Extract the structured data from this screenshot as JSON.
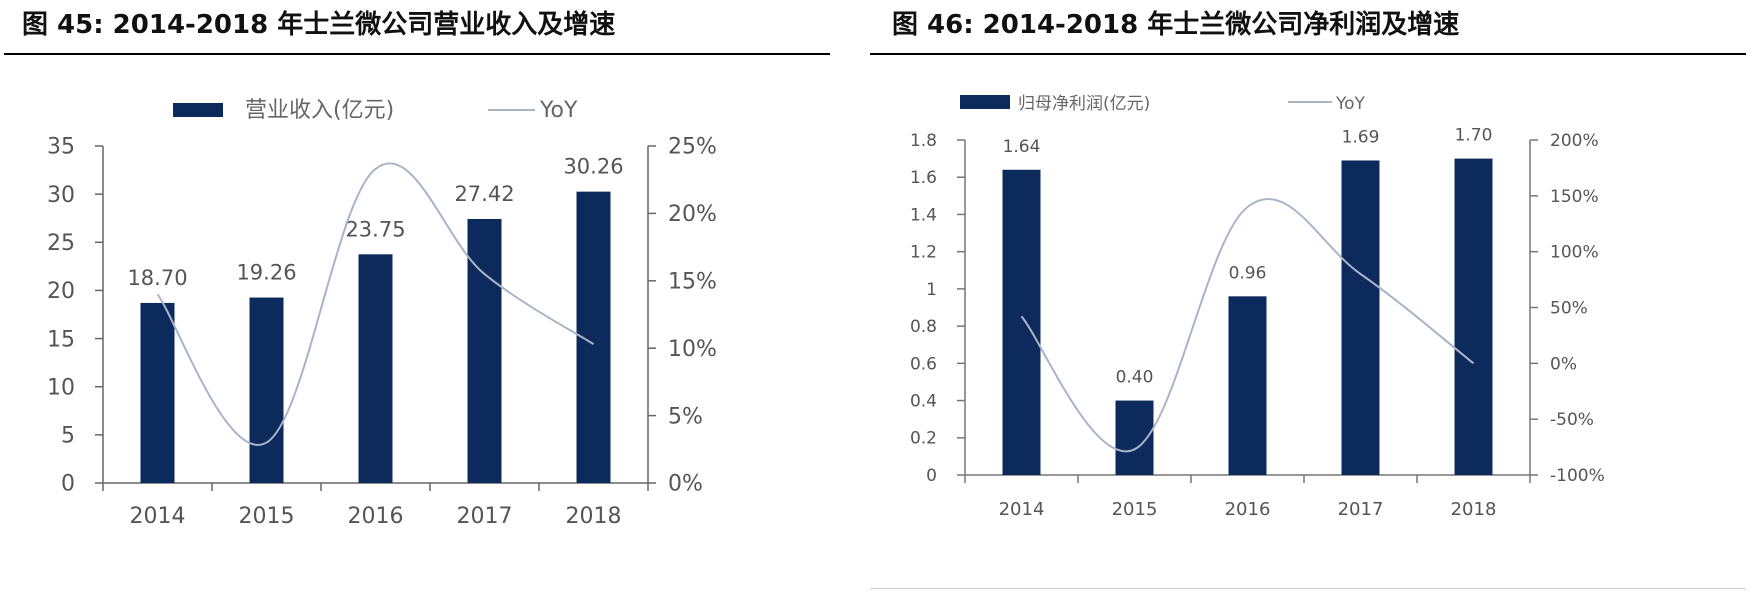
{
  "figures": [
    {
      "title": "图 45:  2014-2018 年士兰微公司营业收入及增速"
    },
    {
      "title": "图 46:  2014-2018 年士兰微公司净利润及增速"
    }
  ],
  "chart_data": [
    {
      "type": "bar",
      "title": "图 45:  2014-2018 年士兰微公司营业收入及增速",
      "categories": [
        "2014",
        "2015",
        "2016",
        "2017",
        "2018"
      ],
      "series": [
        {
          "name": "营业收入(亿元)",
          "type": "bar",
          "axis": "left",
          "values": [
            18.7,
            19.26,
            23.75,
            27.42,
            30.26
          ],
          "labels": [
            "18.70",
            "19.26",
            "23.75",
            "27.42",
            "30.26"
          ]
        },
        {
          "name": "YoY",
          "type": "line",
          "axis": "right",
          "values": [
            14.0,
            3.0,
            23.3,
            15.5,
            10.3
          ]
        }
      ],
      "ylim": [
        0,
        35
      ],
      "y_ticks": [
        "0",
        "5",
        "10",
        "15",
        "20",
        "25",
        "30",
        "35"
      ],
      "y2lim": [
        0,
        25
      ],
      "y2_ticks": [
        "0%",
        "5%",
        "10%",
        "15%",
        "20%",
        "25%"
      ],
      "legend_position": "top",
      "grid": false,
      "colors": {
        "bar": "#0d2a5c",
        "line": "#aab4c8"
      }
    },
    {
      "type": "bar",
      "title": "图 46:  2014-2018 年士兰微公司净利润及增速",
      "categories": [
        "2014",
        "2015",
        "2016",
        "2017",
        "2018"
      ],
      "series": [
        {
          "name": "归母净利润(亿元)",
          "type": "bar",
          "axis": "left",
          "values": [
            1.64,
            0.4,
            0.96,
            1.69,
            1.7
          ],
          "labels": [
            "1.64",
            "0.40",
            "0.96",
            "1.69",
            "1.70"
          ]
        },
        {
          "name": "YoY",
          "type": "line",
          "axis": "right",
          "values": [
            42,
            -77,
            140,
            80,
            0
          ]
        }
      ],
      "ylim": [
        0,
        1.8
      ],
      "y_ticks": [
        "0",
        "0.2",
        "0.4",
        "0.6",
        "0.8",
        "1",
        "1.2",
        "1.4",
        "1.6",
        "1.8"
      ],
      "y2lim": [
        -100,
        200
      ],
      "y2_ticks": [
        "-100%",
        "-50%",
        "0%",
        "50%",
        "100%",
        "150%",
        "200%"
      ],
      "legend_position": "top",
      "grid": false,
      "colors": {
        "bar": "#0d2a5c",
        "line": "#aab4c8"
      }
    }
  ]
}
